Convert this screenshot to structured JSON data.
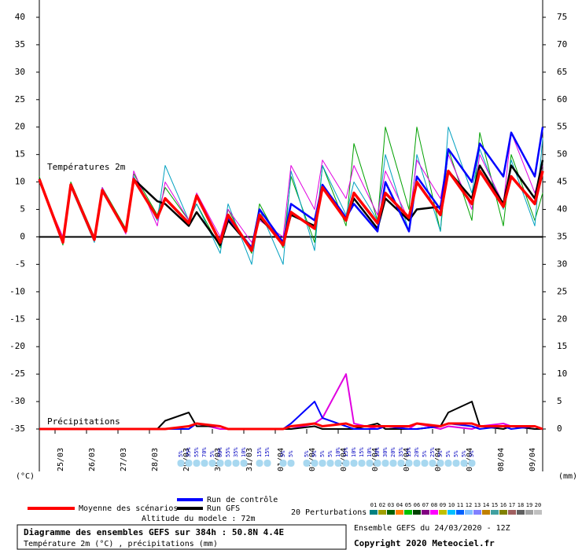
{
  "chart_data": {
    "type": "line",
    "annotations": [
      "Températures 2m",
      "Précipitations"
    ],
    "y_unit": "(°C)",
    "y2_unit": "(mm)",
    "xlim": [
      0,
      384
    ],
    "xticks": [
      {
        "value": 12,
        "label": "25/03"
      },
      {
        "value": 36,
        "label": "26/03"
      },
      {
        "value": 60,
        "label": "27/03"
      },
      {
        "value": 84,
        "label": "28/03"
      },
      {
        "value": 108,
        "label": "29/03"
      },
      {
        "value": 132,
        "label": "30/03"
      },
      {
        "value": 156,
        "label": "31/03"
      },
      {
        "value": 180,
        "label": "01/04"
      },
      {
        "value": 204,
        "label": "02/04"
      },
      {
        "value": 228,
        "label": "03/04"
      },
      {
        "value": 252,
        "label": "04/04"
      },
      {
        "value": 276,
        "label": "05/04"
      },
      {
        "value": 300,
        "label": "06/04"
      },
      {
        "value": 324,
        "label": "07/04"
      },
      {
        "value": 348,
        "label": "08/04"
      },
      {
        "value": 372,
        "label": "09/04"
      }
    ],
    "ylim": [
      -35,
      40
    ],
    "yticks": [
      -35,
      -30,
      -25,
      -20,
      -15,
      -10,
      -5,
      0,
      5,
      10,
      15,
      20,
      25,
      30,
      35,
      40
    ],
    "y2lim": [
      0,
      75
    ],
    "y2ticks": [
      0,
      5,
      10,
      15,
      20,
      25,
      30,
      35,
      40,
      45,
      50,
      55,
      60,
      65,
      70,
      75
    ],
    "x": [
      0,
      18,
      24,
      42,
      48,
      66,
      72,
      90,
      96,
      114,
      120,
      138,
      144,
      162,
      168,
      186,
      192,
      210,
      216,
      234,
      240,
      258,
      264,
      282,
      288,
      306,
      312,
      330,
      336,
      354,
      360,
      378,
      384
    ],
    "series": [
      {
        "color": "#00a000",
        "values": [
          11,
          -1.5,
          10,
          0,
          9,
          1.5,
          11.5,
          4,
          9,
          3,
          6,
          -2,
          5,
          -3,
          6,
          -2,
          11,
          -1,
          13,
          2,
          17,
          3,
          20,
          5,
          20,
          1,
          16,
          3,
          19,
          2,
          15,
          3,
          8
        ]
      },
      {
        "color": "#00a0c0",
        "values": [
          10,
          -1,
          9,
          -1,
          9,
          1,
          11,
          3,
          13,
          3,
          6,
          -3,
          6,
          -5,
          5,
          -5,
          12,
          -2.5,
          13,
          4,
          10,
          3,
          15,
          1,
          15,
          1,
          20,
          8,
          16,
          5,
          14,
          2,
          18
        ]
      },
      {
        "color": "#e000e0",
        "values": [
          10,
          0,
          9,
          0,
          9,
          0.5,
          12,
          2,
          10,
          3,
          8,
          0,
          5,
          -1,
          3,
          0,
          13,
          5,
          14,
          7,
          13,
          4,
          12,
          3,
          14,
          7,
          15,
          5,
          15,
          6,
          19,
          8,
          13
        ]
      },
      {
        "name": "Run GFS",
        "color": "#000000",
        "values": [
          10.5,
          -1,
          9.5,
          -0.5,
          8.5,
          1,
          10.5,
          6.5,
          6,
          2,
          4.5,
          -1.5,
          3,
          -2,
          3.5,
          -1,
          4,
          2,
          9,
          3,
          7,
          1.5,
          7,
          3,
          5,
          5.5,
          12,
          7,
          13,
          6,
          13,
          7,
          14
        ]
      },
      {
        "name": "Run de contrôle",
        "color": "#0000ff",
        "values": [
          10.5,
          -1,
          9.5,
          -0.5,
          8.5,
          1,
          10.5,
          3.5,
          7,
          2.5,
          7.5,
          -1,
          3.5,
          -2,
          5,
          -1,
          6,
          3,
          9.5,
          3.5,
          6,
          1,
          10,
          1,
          11,
          5,
          16,
          10,
          17,
          11,
          19,
          11,
          20
        ]
      },
      {
        "name": "Moyenne des scénarios",
        "color": "#ff0000",
        "values": [
          10.5,
          -1,
          9.5,
          -0.5,
          8.5,
          1,
          10.5,
          3.5,
          7,
          2.5,
          7.5,
          -1,
          4,
          -2.5,
          4,
          -1.5,
          4.5,
          1.5,
          9,
          3,
          8,
          2.5,
          8,
          3.5,
          10,
          4,
          12,
          6,
          12,
          5.5,
          11,
          6,
          12
        ]
      },
      {
        "axis": "y2",
        "color": "#e000e0",
        "values": [
          0,
          0,
          0,
          0,
          0,
          0,
          0,
          0,
          0,
          0.5,
          1,
          0,
          0,
          0,
          0,
          0,
          0,
          1,
          2,
          10,
          1,
          0,
          0.5,
          0,
          1,
          0,
          0.5,
          0,
          0.5,
          1,
          0.5,
          0,
          0
        ]
      },
      {
        "axis": "y2",
        "color": "#000000",
        "values": [
          0,
          0,
          0,
          0,
          0,
          0,
          0,
          0,
          1.5,
          3,
          0.5,
          0.5,
          0,
          0,
          0,
          0,
          0,
          0.5,
          0,
          0,
          0,
          1,
          0,
          0,
          0,
          0.5,
          3,
          5,
          0.5,
          0,
          0.5,
          0,
          0
        ]
      },
      {
        "axis": "y2",
        "color": "#0000ff",
        "values": [
          0,
          0,
          0,
          0,
          0,
          0,
          0,
          0,
          0,
          0,
          1,
          0.5,
          0,
          0,
          0,
          0,
          1,
          5,
          2,
          0.5,
          0,
          0,
          0.5,
          0,
          0,
          0.5,
          1,
          0.5,
          0,
          0.5,
          0,
          0.5,
          0
        ]
      },
      {
        "axis": "y2",
        "color": "#ff0000",
        "values": [
          0,
          0,
          0,
          0,
          0,
          0,
          0,
          0,
          0,
          0.5,
          1,
          0.5,
          0,
          0,
          0,
          0,
          0.5,
          1,
          0.5,
          1,
          0.5,
          0.5,
          0.5,
          0.5,
          1,
          0.5,
          1,
          1,
          0.5,
          0.5,
          0.5,
          0.5,
          0
        ]
      }
    ],
    "snow": {
      "x": [
        108,
        114,
        120,
        126,
        132,
        138,
        144,
        150,
        156,
        168,
        174,
        186,
        192,
        204,
        210,
        216,
        222,
        228,
        234,
        240,
        246,
        252,
        258,
        264,
        270,
        276,
        282,
        288,
        294,
        300,
        306,
        312,
        318,
        324,
        330
      ],
      "labels": [
        "5%",
        "35%",
        "55%",
        "70%",
        "5%",
        "60%",
        "55%",
        "35%",
        "10%",
        "15%",
        "15%",
        "5%",
        "5%",
        "5%",
        "5%",
        "5%",
        "5%",
        "10%",
        "15%",
        "10%",
        "15%",
        "10%",
        "10%",
        "30%",
        "20%",
        "35%",
        "15%",
        "20%",
        "5%",
        "25%",
        "5%",
        "5%",
        "5%",
        "5%",
        "5%"
      ]
    },
    "perturbations": {
      "title": "20 Perturbations",
      "names": [
        "01",
        "02",
        "03",
        "04",
        "05",
        "06",
        "07",
        "08",
        "09",
        "10",
        "11",
        "12",
        "13",
        "14",
        "15",
        "16",
        "17",
        "18",
        "19",
        "20"
      ],
      "colors": [
        "#008080",
        "#a0a000",
        "#006000",
        "#ff8000",
        "#00c000",
        "#004000",
        "#800080",
        "#ff00ff",
        "#c0c000",
        "#00c0ff",
        "#0060ff",
        "#80c0ff",
        "#8080ff",
        "#c08000",
        "#40a0a0",
        "#808000",
        "#a06060",
        "#606060",
        "#a0a0a0",
        "#c0c0c0"
      ]
    },
    "altitude": "Altitude du modele : 72m",
    "title": "Diagramme des ensembles GEFS sur 384h : 50.8N 4.4E",
    "subtitle": "Température 2m (°C) , précipitations (mm)",
    "run_info": "Ensemble GEFS du 24/03/2020 - 12Z",
    "copyright": "Copyright 2020 Meteociel.fr"
  }
}
